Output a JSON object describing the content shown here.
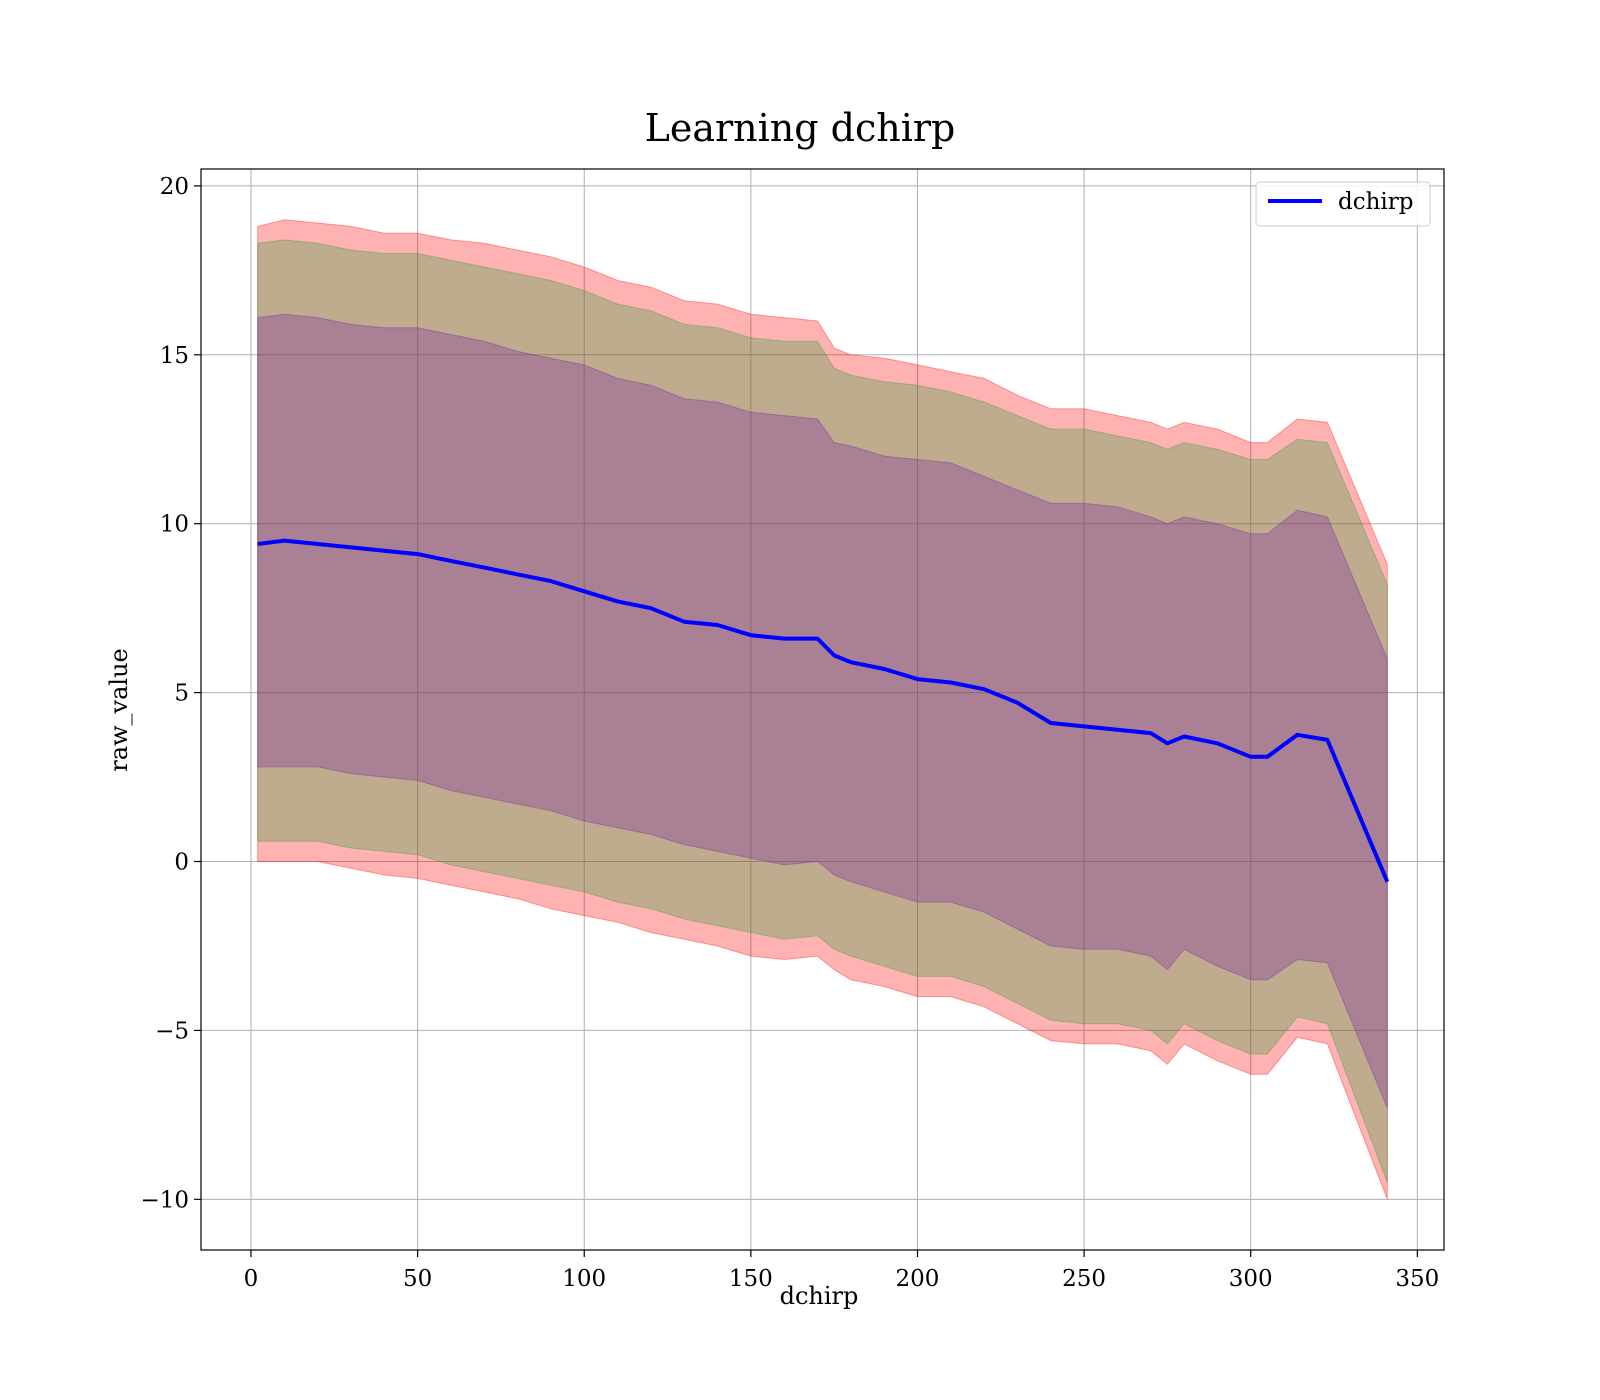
{
  "chart_data": {
    "type": "area",
    "title": "Learning dchirp",
    "xlabel": "dchirp",
    "ylabel": "raw_value",
    "xlim": [
      -15,
      358
    ],
    "ylim": [
      -11.5,
      20.5
    ],
    "xticks": [
      0,
      50,
      100,
      150,
      200,
      250,
      300,
      350
    ],
    "yticks": [
      -10,
      -5,
      0,
      5,
      10,
      15,
      20
    ],
    "grid": true,
    "legend": {
      "placement": "top-right",
      "entries": [
        "dchirp"
      ]
    },
    "colors": {
      "line": "#0000ff",
      "outer_band": "#ff0000",
      "middle_band": "#2a9d3c",
      "inner_band": "#7a1fa2"
    },
    "series": [
      {
        "name": "dchirp",
        "role": "mean",
        "x": [
          2,
          10,
          20,
          30,
          40,
          50,
          60,
          70,
          80,
          90,
          100,
          110,
          120,
          130,
          140,
          150,
          160,
          170,
          175,
          180,
          190,
          200,
          210,
          220,
          230,
          240,
          250,
          260,
          270,
          275,
          280,
          290,
          300,
          305,
          314,
          323,
          341
        ],
        "values": [
          9.4,
          9.5,
          9.4,
          9.3,
          9.2,
          9.1,
          8.9,
          8.7,
          8.5,
          8.3,
          8.0,
          7.7,
          7.5,
          7.1,
          7.0,
          6.7,
          6.6,
          6.6,
          6.1,
          5.9,
          5.7,
          5.4,
          5.3,
          5.1,
          4.7,
          4.1,
          4.0,
          3.9,
          3.8,
          3.5,
          3.7,
          3.5,
          3.1,
          3.1,
          3.75,
          3.6,
          -0.6
        ]
      },
      {
        "role": "band_outer",
        "upper": [
          18.8,
          19.0,
          18.9,
          18.8,
          18.6,
          18.6,
          18.4,
          18.3,
          18.1,
          17.9,
          17.6,
          17.2,
          17.0,
          16.6,
          16.5,
          16.2,
          16.1,
          16.0,
          15.2,
          15.0,
          14.9,
          14.7,
          14.5,
          14.3,
          13.8,
          13.4,
          13.4,
          13.2,
          13.0,
          12.8,
          13.0,
          12.8,
          12.4,
          12.4,
          13.1,
          13.0,
          8.8
        ],
        "lower": [
          0.0,
          0.0,
          0.0,
          -0.2,
          -0.4,
          -0.5,
          -0.7,
          -0.9,
          -1.1,
          -1.4,
          -1.6,
          -1.8,
          -2.1,
          -2.3,
          -2.5,
          -2.8,
          -2.9,
          -2.8,
          -3.2,
          -3.5,
          -3.7,
          -4.0,
          -4.0,
          -4.3,
          -4.8,
          -5.3,
          -5.4,
          -5.4,
          -5.6,
          -6.0,
          -5.4,
          -5.9,
          -6.3,
          -6.3,
          -5.2,
          -5.4,
          -10.0
        ]
      },
      {
        "role": "band_middle",
        "upper": [
          18.3,
          18.4,
          18.3,
          18.1,
          18.0,
          18.0,
          17.8,
          17.6,
          17.4,
          17.2,
          16.9,
          16.5,
          16.3,
          15.9,
          15.8,
          15.5,
          15.4,
          15.4,
          14.6,
          14.4,
          14.2,
          14.1,
          13.9,
          13.6,
          13.2,
          12.8,
          12.8,
          12.6,
          12.4,
          12.2,
          12.4,
          12.2,
          11.9,
          11.9,
          12.5,
          12.4,
          8.2
        ],
        "lower": [
          0.6,
          0.6,
          0.6,
          0.4,
          0.3,
          0.2,
          -0.1,
          -0.3,
          -0.5,
          -0.7,
          -0.9,
          -1.2,
          -1.4,
          -1.7,
          -1.9,
          -2.1,
          -2.3,
          -2.2,
          -2.6,
          -2.8,
          -3.1,
          -3.4,
          -3.4,
          -3.7,
          -4.2,
          -4.7,
          -4.8,
          -4.8,
          -5.0,
          -5.4,
          -4.8,
          -5.3,
          -5.7,
          -5.7,
          -4.6,
          -4.8,
          -9.5
        ]
      },
      {
        "role": "band_inner",
        "upper": [
          16.1,
          16.2,
          16.1,
          15.9,
          15.8,
          15.8,
          15.6,
          15.4,
          15.1,
          14.9,
          14.7,
          14.3,
          14.1,
          13.7,
          13.6,
          13.3,
          13.2,
          13.1,
          12.4,
          12.3,
          12.0,
          11.9,
          11.8,
          11.4,
          11.0,
          10.6,
          10.6,
          10.5,
          10.2,
          10.0,
          10.2,
          10.0,
          9.7,
          9.7,
          10.4,
          10.2,
          6.0
        ],
        "lower": [
          2.8,
          2.8,
          2.8,
          2.6,
          2.5,
          2.4,
          2.1,
          1.9,
          1.7,
          1.5,
          1.2,
          1.0,
          0.8,
          0.5,
          0.3,
          0.1,
          -0.1,
          0.0,
          -0.4,
          -0.6,
          -0.9,
          -1.2,
          -1.2,
          -1.5,
          -2.0,
          -2.5,
          -2.6,
          -2.6,
          -2.8,
          -3.2,
          -2.6,
          -3.1,
          -3.5,
          -3.5,
          -2.9,
          -3.0,
          -7.3
        ]
      }
    ]
  }
}
